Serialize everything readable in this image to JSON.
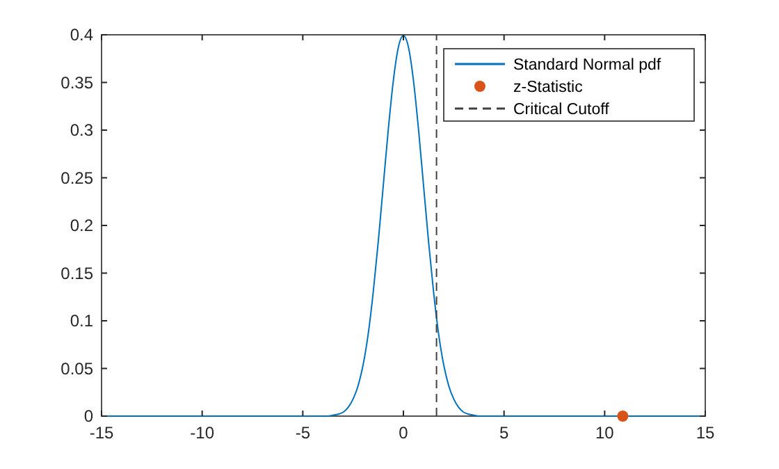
{
  "chart_data": {
    "type": "line",
    "xlim": [
      -15,
      15
    ],
    "xticks": [
      -15,
      -10,
      -5,
      0,
      5,
      10,
      15
    ],
    "ylim": [
      0,
      0.4
    ],
    "yticks": [
      0,
      0.05,
      0.1,
      0.15,
      0.2,
      0.25,
      0.3,
      0.35,
      0.4
    ],
    "grid": false,
    "legend": "top right",
    "series": [
      {
        "name": "Standard Normal pdf",
        "color": "#0072bd",
        "marker": "none",
        "x": [
          -15,
          -5,
          -4,
          -3.75,
          -3.5,
          -3.25,
          -3,
          -2.75,
          -2.5,
          -2.25,
          -2,
          -1.75,
          -1.5,
          -1.25,
          -1,
          -0.75,
          -0.5,
          -0.25,
          0,
          0.25,
          0.5,
          0.75,
          1,
          1.25,
          1.5,
          1.75,
          2,
          2.25,
          2.5,
          2.75,
          3,
          3.25,
          3.5,
          3.75,
          4,
          5,
          15
        ],
        "values": [
          0,
          0,
          0,
          0,
          0.001,
          0.002,
          0.004,
          0.009,
          0.018,
          0.032,
          0.054,
          0.086,
          0.13,
          0.183,
          0.242,
          0.301,
          0.352,
          0.387,
          0.399,
          0.387,
          0.352,
          0.301,
          0.242,
          0.183,
          0.13,
          0.086,
          0.054,
          0.032,
          0.018,
          0.009,
          0.004,
          0.002,
          0.001,
          0,
          0,
          0,
          0
        ]
      },
      {
        "name": "z-Statistic",
        "color": "#d95319",
        "type": "scatter",
        "marker": "circle",
        "x": [
          10.9
        ],
        "values": [
          0
        ]
      },
      {
        "name": "Critical Cutoff",
        "color": "#404040",
        "line_style": "dashed",
        "x": [
          1.645,
          1.645
        ],
        "values": [
          0,
          0.4
        ]
      }
    ]
  }
}
